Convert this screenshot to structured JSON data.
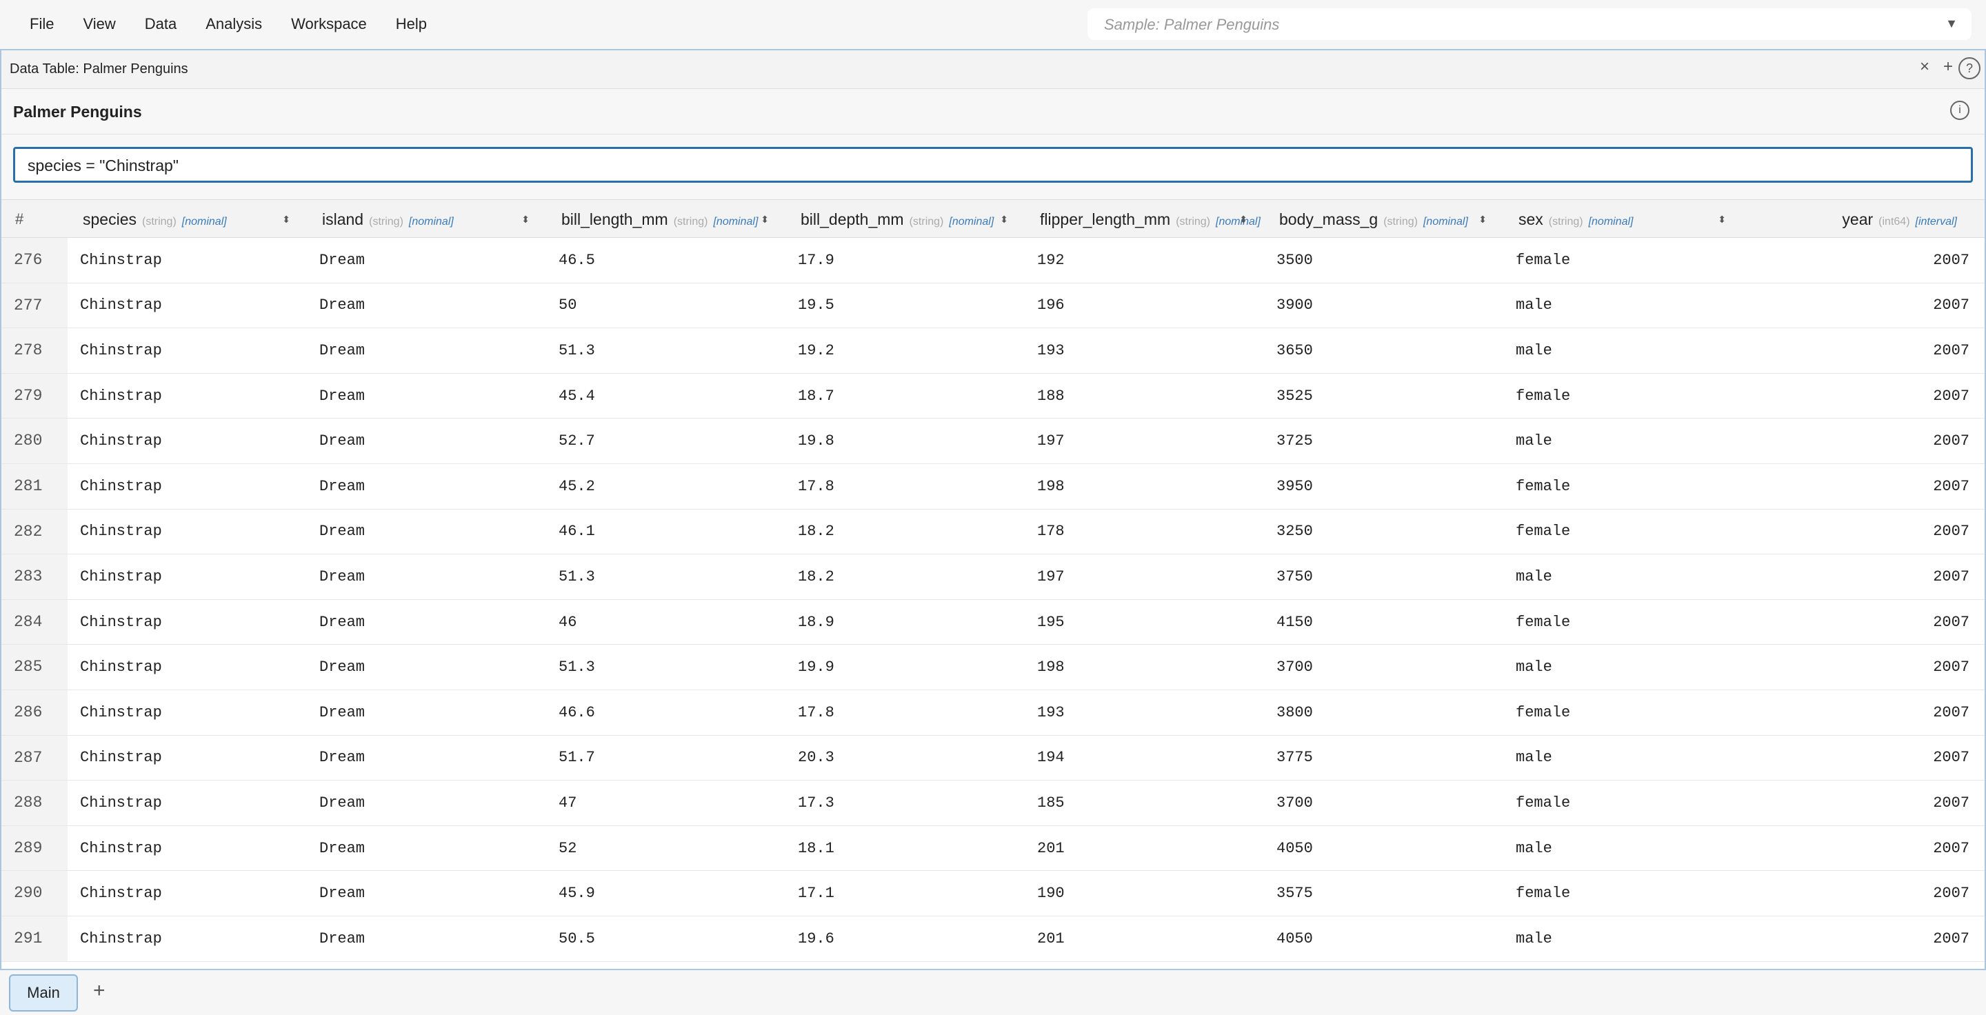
{
  "menu": [
    "File",
    "View",
    "Data",
    "Analysis",
    "Workspace",
    "Help"
  ],
  "sample_selector": "Sample: Palmer Penguins",
  "panel_title": "Data Table: Palmer Penguins",
  "table_title": "Palmer Penguins",
  "filter": "species = \"Chinstrap\"",
  "table": {
    "index_header": "#",
    "columns": [
      {
        "name": "species",
        "type": "(string)",
        "measure": "[nominal]"
      },
      {
        "name": "island",
        "type": "(string)",
        "measure": "[nominal]"
      },
      {
        "name": "bill_length_mm",
        "type": "(string)",
        "measure": "[nominal]"
      },
      {
        "name": "bill_depth_mm",
        "type": "(string)",
        "measure": "[nominal]"
      },
      {
        "name": "flipper_length_mm",
        "type": "(string)",
        "measure": "[nominal]"
      },
      {
        "name": "body_mass_g",
        "type": "(string)",
        "measure": "[nominal]"
      },
      {
        "name": "sex",
        "type": "(string)",
        "measure": "[nominal]"
      },
      {
        "name": "year",
        "type": "(int64)",
        "measure": "[interval]"
      }
    ],
    "rows": [
      [
        276,
        "Chinstrap",
        "Dream",
        46.5,
        17.9,
        192,
        3500,
        "female",
        2007
      ],
      [
        277,
        "Chinstrap",
        "Dream",
        50,
        19.5,
        196,
        3900,
        "male",
        2007
      ],
      [
        278,
        "Chinstrap",
        "Dream",
        51.3,
        19.2,
        193,
        3650,
        "male",
        2007
      ],
      [
        279,
        "Chinstrap",
        "Dream",
        45.4,
        18.7,
        188,
        3525,
        "female",
        2007
      ],
      [
        280,
        "Chinstrap",
        "Dream",
        52.7,
        19.8,
        197,
        3725,
        "male",
        2007
      ],
      [
        281,
        "Chinstrap",
        "Dream",
        45.2,
        17.8,
        198,
        3950,
        "female",
        2007
      ],
      [
        282,
        "Chinstrap",
        "Dream",
        46.1,
        18.2,
        178,
        3250,
        "female",
        2007
      ],
      [
        283,
        "Chinstrap",
        "Dream",
        51.3,
        18.2,
        197,
        3750,
        "male",
        2007
      ],
      [
        284,
        "Chinstrap",
        "Dream",
        46,
        18.9,
        195,
        4150,
        "female",
        2007
      ],
      [
        285,
        "Chinstrap",
        "Dream",
        51.3,
        19.9,
        198,
        3700,
        "male",
        2007
      ],
      [
        286,
        "Chinstrap",
        "Dream",
        46.6,
        17.8,
        193,
        3800,
        "female",
        2007
      ],
      [
        287,
        "Chinstrap",
        "Dream",
        51.7,
        20.3,
        194,
        3775,
        "male",
        2007
      ],
      [
        288,
        "Chinstrap",
        "Dream",
        47,
        17.3,
        185,
        3700,
        "female",
        2007
      ],
      [
        289,
        "Chinstrap",
        "Dream",
        52,
        18.1,
        201,
        4050,
        "male",
        2007
      ],
      [
        290,
        "Chinstrap",
        "Dream",
        45.9,
        17.1,
        190,
        3575,
        "female",
        2007
      ],
      [
        291,
        "Chinstrap",
        "Dream",
        50.5,
        19.6,
        201,
        4050,
        "male",
        2007
      ]
    ]
  },
  "tabs": [
    "Main"
  ]
}
